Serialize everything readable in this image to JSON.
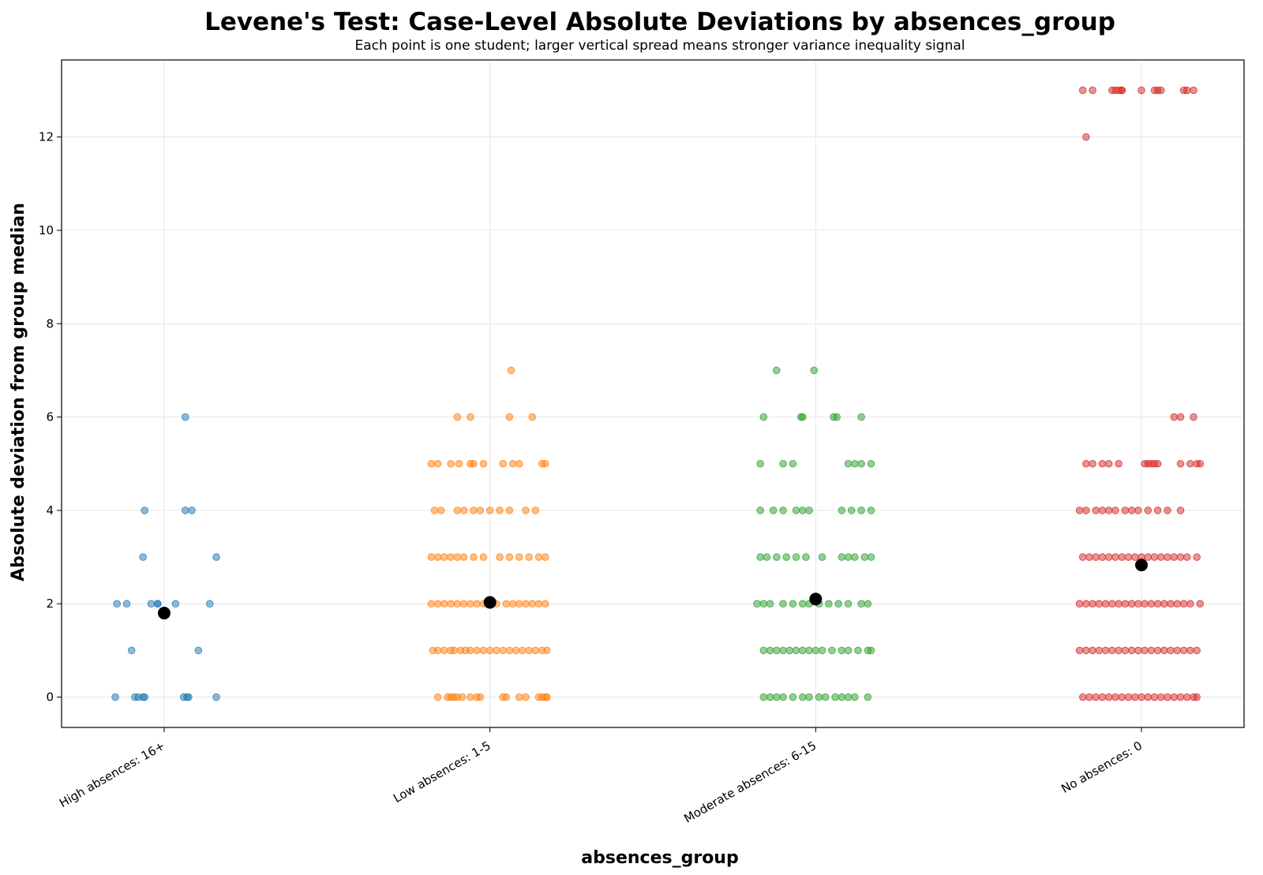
{
  "chart_data": {
    "type": "scatter",
    "title": "Levene's Test: Case-Level Absolute Deviations by absences_group",
    "subtitle": "Each point is one student; larger vertical spread means stronger variance inequality signal",
    "xlabel": "absences_group",
    "ylabel": "Absolute deviation from group median",
    "categories": [
      "High absences: 16+",
      "Low absences: 1-5",
      "Moderate absences: 6-15",
      "No absences: 0"
    ],
    "ylim": [
      -0.65,
      13.65
    ],
    "yticks": [
      0,
      2,
      4,
      6,
      8,
      10,
      12
    ],
    "grid": true,
    "colors": [
      "#1f77b4",
      "#ff7f0e",
      "#2ca02c",
      "#d62728"
    ],
    "mean_marker_color": "#000000",
    "series": [
      {
        "category": "High absences: 16+",
        "mean": 1.8,
        "points": [
          {
            "y": 0,
            "dx": -0.15
          },
          {
            "y": 0,
            "dx": -0.09
          },
          {
            "y": 0,
            "dx": -0.08
          },
          {
            "y": 0,
            "dx": -0.065
          },
          {
            "y": 0,
            "dx": -0.065
          },
          {
            "y": 0,
            "dx": -0.065
          },
          {
            "y": 0,
            "dx": -0.065
          },
          {
            "y": 0,
            "dx": -0.065
          },
          {
            "y": 0,
            "dx": -0.065
          },
          {
            "y": 0,
            "dx": -0.065
          },
          {
            "y": 0,
            "dx": -0.065
          },
          {
            "y": 0,
            "dx": -0.065
          },
          {
            "y": 0,
            "dx": -0.065
          },
          {
            "y": 0,
            "dx": -0.065
          },
          {
            "y": 0,
            "dx": -0.065
          },
          {
            "y": 0,
            "dx": -0.065
          },
          {
            "y": 0,
            "dx": -0.065
          },
          {
            "y": 0,
            "dx": -0.065
          },
          {
            "y": 0,
            "dx": -0.065
          },
          {
            "y": 0,
            "dx": -0.065
          }
        ]
      }
    ]
  }
}
